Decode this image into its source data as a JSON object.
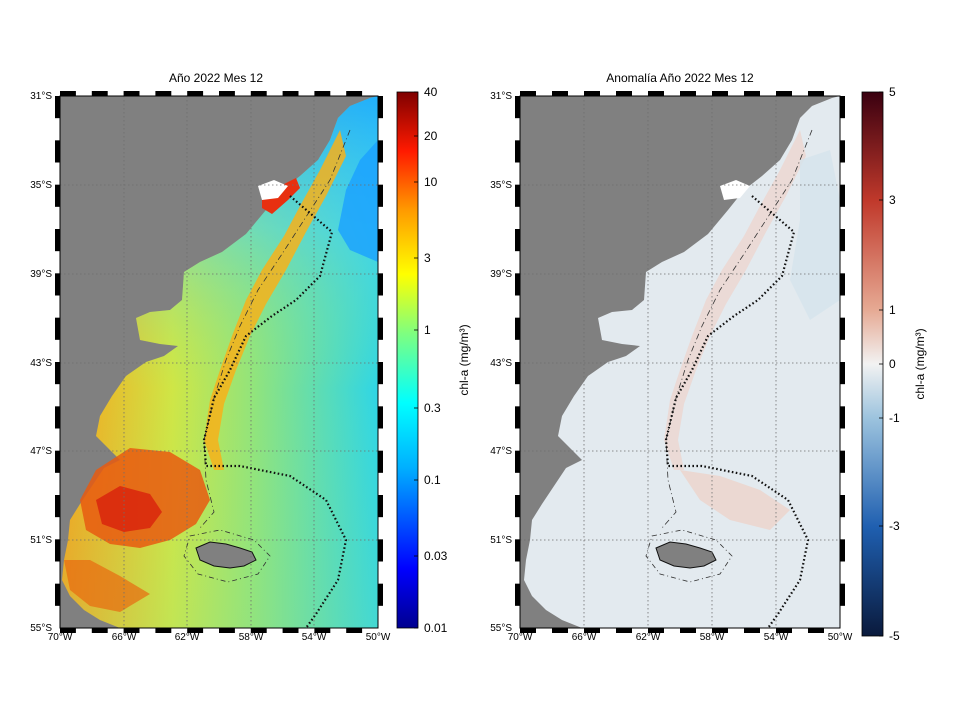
{
  "left_map": {
    "title": "Año 2022 Mes 12",
    "lat_labels": [
      "31°S",
      "35°S",
      "39°S",
      "43°S",
      "47°S",
      "51°S",
      "55°S"
    ],
    "lon_labels": [
      "70°W",
      "66°W",
      "62°W",
      "58°W",
      "54°W",
      "50°W"
    ],
    "colorbar": {
      "label": "chl-a (mg/m³)",
      "scale": "log",
      "range": [
        0.01,
        40
      ],
      "ticks": [
        "40",
        "20",
        "10",
        "3",
        "1",
        "0.3",
        "0.1",
        "0.03",
        "0.01"
      ],
      "colormap": "jet"
    }
  },
  "right_map": {
    "title": "Anomalía Año 2022 Mes 12",
    "lat_labels": [
      "31°S",
      "35°S",
      "39°S",
      "43°S",
      "47°S",
      "51°S",
      "55°S"
    ],
    "lon_labels": [
      "70°W",
      "66°W",
      "62°W",
      "58°W",
      "54°W",
      "50°W"
    ],
    "colorbar": {
      "label": "chl-a (mg/m³)",
      "scale": "linear",
      "range": [
        -5,
        5
      ],
      "ticks": [
        "5",
        "3",
        "1",
        "0",
        "-1",
        "-3",
        "-5"
      ],
      "colormap": "diverging blue-white-red"
    }
  },
  "colors": {
    "land": "#808080",
    "no_data": "#ffffff",
    "grid": "#6e6e6e"
  }
}
